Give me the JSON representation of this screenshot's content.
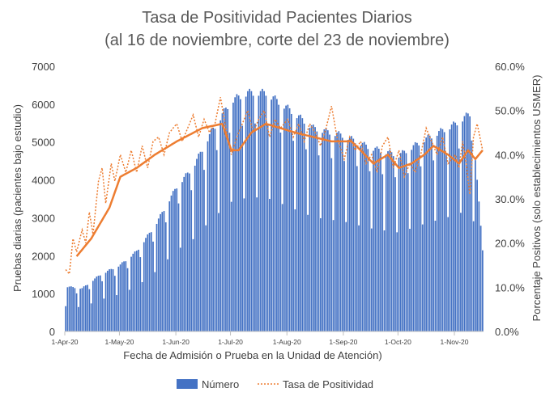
{
  "chart_data": {
    "type": "bar+line",
    "title_line1": "Tasa de Positividad Pacientes Diarios",
    "title_line2": "(al 16 de noviembre, corte del 23 de noviembre)",
    "xlabel": "Fecha de Admisión o Prueba en la Unidad de Atención)",
    "ylabel_left": "Pruebas diarias (pacientes bajo estudio)",
    "ylabel_right": "Porcentaje Positivos (solo establecimientos USMER)",
    "ylim_left": [
      0,
      7000
    ],
    "ylim_right": [
      0,
      0.6
    ],
    "yticks_left": [
      "0",
      "1000",
      "2000",
      "3000",
      "4000",
      "5000",
      "6000",
      "7000"
    ],
    "yticks_right": [
      "0.0%",
      "10.0%",
      "20.0%",
      "30.0%",
      "40.0%",
      "50.0%",
      "60.0%"
    ],
    "xtick_labels": [
      "1-Apr-20",
      "1-May-20",
      "1-Jun-20",
      "1-Jul-20",
      "1-Aug-20",
      "1-Sep-20",
      "1-Oct-20",
      "1-Nov-20"
    ],
    "x_start": "2020-04-01",
    "x_end": "2020-11-16",
    "legend": [
      "Número",
      "Tasa de Positividad"
    ],
    "legend_position": "bottom",
    "colors": {
      "bars": "#4472C4",
      "positivity": "#ED7D31",
      "axis": "#BFBFBF",
      "text": "#404040"
    },
    "weekly_bar_pattern": [
      0.58,
      1.02,
      1.04,
      1.05,
      1.04,
      1.02,
      0.9
    ],
    "bar_trend_anchors": [
      [
        "2020-04-01",
        1150
      ],
      [
        "2020-04-10",
        1100
      ],
      [
        "2020-04-20",
        1450
      ],
      [
        "2020-05-01",
        1700
      ],
      [
        "2020-05-10",
        2050
      ],
      [
        "2020-05-20",
        2700
      ],
      [
        "2020-06-01",
        3700
      ],
      [
        "2020-06-10",
        4200
      ],
      [
        "2020-06-20",
        5100
      ],
      [
        "2020-07-01",
        5900
      ],
      [
        "2020-07-10",
        6100
      ],
      [
        "2020-07-20",
        6100
      ],
      [
        "2020-08-01",
        5700
      ],
      [
        "2020-08-15",
        5200
      ],
      [
        "2020-09-01",
        5000
      ],
      [
        "2020-09-15",
        4700
      ],
      [
        "2020-10-01",
        4500
      ],
      [
        "2020-10-15",
        4900
      ],
      [
        "2020-11-01",
        5300
      ],
      [
        "2020-11-10",
        5600
      ],
      [
        "2020-11-16",
        2100
      ]
    ],
    "positivity_daily_anchors": [
      [
        "2020-04-01",
        0.14
      ],
      [
        "2020-04-03",
        0.13
      ],
      [
        "2020-04-05",
        0.21
      ],
      [
        "2020-04-07",
        0.18
      ],
      [
        "2020-04-10",
        0.23
      ],
      [
        "2020-04-12",
        0.2
      ],
      [
        "2020-04-14",
        0.27
      ],
      [
        "2020-04-16",
        0.22
      ],
      [
        "2020-04-19",
        0.34
      ],
      [
        "2020-04-21",
        0.37
      ],
      [
        "2020-04-23",
        0.29
      ],
      [
        "2020-04-26",
        0.38
      ],
      [
        "2020-04-28",
        0.34
      ],
      [
        "2020-05-01",
        0.4
      ],
      [
        "2020-05-04",
        0.36
      ],
      [
        "2020-05-07",
        0.41
      ],
      [
        "2020-05-10",
        0.36
      ],
      [
        "2020-05-13",
        0.42
      ],
      [
        "2020-05-16",
        0.37
      ],
      [
        "2020-05-19",
        0.43
      ],
      [
        "2020-05-22",
        0.44
      ],
      [
        "2020-05-25",
        0.4
      ],
      [
        "2020-05-28",
        0.45
      ],
      [
        "2020-06-01",
        0.47
      ],
      [
        "2020-06-04",
        0.43
      ],
      [
        "2020-06-07",
        0.46
      ],
      [
        "2020-06-10",
        0.49
      ],
      [
        "2020-06-13",
        0.44
      ],
      [
        "2020-06-16",
        0.48
      ],
      [
        "2020-06-19",
        0.45
      ],
      [
        "2020-06-22",
        0.47
      ],
      [
        "2020-06-25",
        0.53
      ],
      [
        "2020-06-28",
        0.46
      ],
      [
        "2020-07-01",
        0.4
      ],
      [
        "2020-07-04",
        0.44
      ],
      [
        "2020-07-07",
        0.47
      ],
      [
        "2020-07-10",
        0.5
      ],
      [
        "2020-07-13",
        0.45
      ],
      [
        "2020-07-16",
        0.48
      ],
      [
        "2020-07-19",
        0.5
      ],
      [
        "2020-07-22",
        0.44
      ],
      [
        "2020-07-25",
        0.48
      ],
      [
        "2020-07-28",
        0.46
      ],
      [
        "2020-08-01",
        0.48
      ],
      [
        "2020-08-04",
        0.44
      ],
      [
        "2020-08-07",
        0.47
      ],
      [
        "2020-08-10",
        0.43
      ],
      [
        "2020-08-13",
        0.47
      ],
      [
        "2020-08-16",
        0.45
      ],
      [
        "2020-08-19",
        0.42
      ],
      [
        "2020-08-22",
        0.46
      ],
      [
        "2020-08-25",
        0.51
      ],
      [
        "2020-08-28",
        0.44
      ],
      [
        "2020-09-01",
        0.39
      ],
      [
        "2020-09-04",
        0.44
      ],
      [
        "2020-09-07",
        0.41
      ],
      [
        "2020-09-10",
        0.43
      ],
      [
        "2020-09-13",
        0.38
      ],
      [
        "2020-09-16",
        0.4
      ],
      [
        "2020-09-19",
        0.36
      ],
      [
        "2020-09-22",
        0.42
      ],
      [
        "2020-09-25",
        0.44
      ],
      [
        "2020-09-28",
        0.37
      ],
      [
        "2020-10-01",
        0.41
      ],
      [
        "2020-10-04",
        0.35
      ],
      [
        "2020-10-07",
        0.38
      ],
      [
        "2020-10-10",
        0.36
      ],
      [
        "2020-10-13",
        0.4
      ],
      [
        "2020-10-16",
        0.46
      ],
      [
        "2020-10-19",
        0.43
      ],
      [
        "2020-10-22",
        0.4
      ],
      [
        "2020-10-25",
        0.44
      ],
      [
        "2020-10-28",
        0.38
      ],
      [
        "2020-11-01",
        0.4
      ],
      [
        "2020-11-03",
        0.37
      ],
      [
        "2020-11-05",
        0.43
      ],
      [
        "2020-11-07",
        0.38
      ],
      [
        "2020-11-09",
        0.31
      ],
      [
        "2020-11-11",
        0.44
      ],
      [
        "2020-11-13",
        0.47
      ],
      [
        "2020-11-16",
        0.41
      ]
    ],
    "positivity_avg_anchors": [
      [
        "2020-04-07",
        0.17
      ],
      [
        "2020-04-15",
        0.21
      ],
      [
        "2020-04-25",
        0.28
      ],
      [
        "2020-05-01",
        0.35
      ],
      [
        "2020-05-10",
        0.37
      ],
      [
        "2020-05-20",
        0.4
      ],
      [
        "2020-06-01",
        0.43
      ],
      [
        "2020-06-15",
        0.46
      ],
      [
        "2020-06-26",
        0.47
      ],
      [
        "2020-07-01",
        0.41
      ],
      [
        "2020-07-05",
        0.41
      ],
      [
        "2020-07-12",
        0.45
      ],
      [
        "2020-07-20",
        0.47
      ],
      [
        "2020-07-28",
        0.46
      ],
      [
        "2020-08-05",
        0.45
      ],
      [
        "2020-08-15",
        0.44
      ],
      [
        "2020-08-25",
        0.43
      ],
      [
        "2020-09-05",
        0.43
      ],
      [
        "2020-09-10",
        0.41
      ],
      [
        "2020-09-17",
        0.38
      ],
      [
        "2020-09-25",
        0.4
      ],
      [
        "2020-10-01",
        0.37
      ],
      [
        "2020-10-08",
        0.38
      ],
      [
        "2020-10-15",
        0.4
      ],
      [
        "2020-10-20",
        0.42
      ],
      [
        "2020-10-28",
        0.4
      ],
      [
        "2020-11-03",
        0.38
      ],
      [
        "2020-11-08",
        0.41
      ],
      [
        "2020-11-12",
        0.39
      ],
      [
        "2020-11-16",
        0.41
      ]
    ]
  }
}
